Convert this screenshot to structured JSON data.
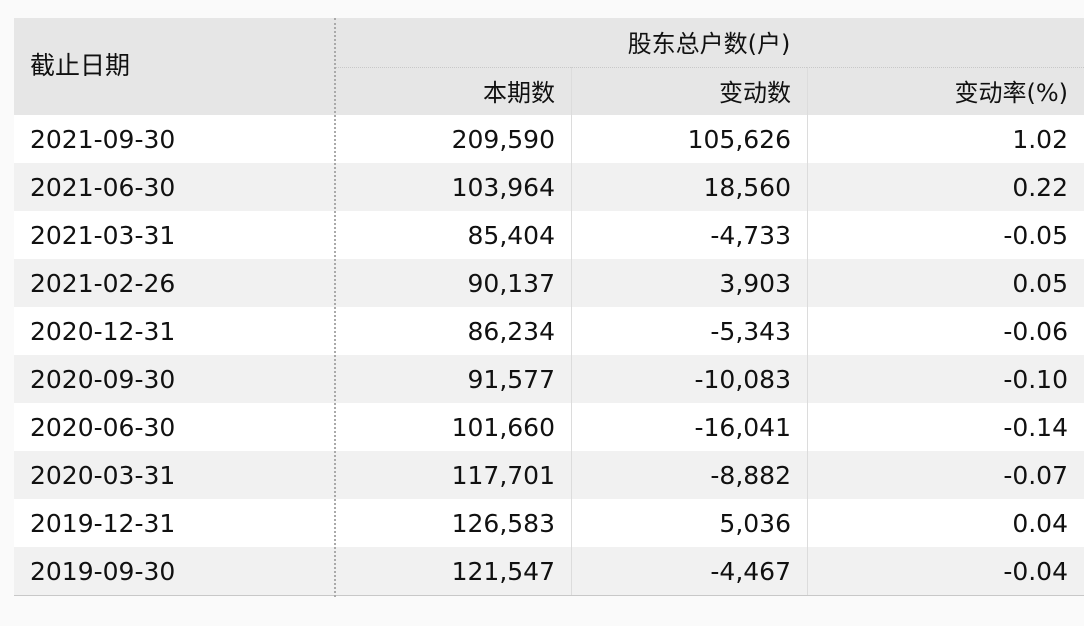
{
  "header": {
    "date_col": "截止日期",
    "group": "股东总户数(户)",
    "cols": [
      "本期数",
      "变动数",
      "变动率(%)"
    ]
  },
  "rows": [
    {
      "date": "2021-09-30",
      "current": "209,590",
      "change": "105,626",
      "rate": "1.02"
    },
    {
      "date": "2021-06-30",
      "current": "103,964",
      "change": "18,560",
      "rate": "0.22"
    },
    {
      "date": "2021-03-31",
      "current": "85,404",
      "change": "-4,733",
      "rate": "-0.05"
    },
    {
      "date": "2021-02-26",
      "current": "90,137",
      "change": "3,903",
      "rate": "0.05"
    },
    {
      "date": "2020-12-31",
      "current": "86,234",
      "change": "-5,343",
      "rate": "-0.06"
    },
    {
      "date": "2020-09-30",
      "current": "91,577",
      "change": "-10,083",
      "rate": "-0.10"
    },
    {
      "date": "2020-06-30",
      "current": "101,660",
      "change": "-16,041",
      "rate": "-0.14"
    },
    {
      "date": "2020-03-31",
      "current": "117,701",
      "change": "-8,882",
      "rate": "-0.07"
    },
    {
      "date": "2019-12-31",
      "current": "126,583",
      "change": "5,036",
      "rate": "0.04"
    },
    {
      "date": "2019-09-30",
      "current": "121,547",
      "change": "-4,467",
      "rate": "-0.04"
    }
  ]
}
